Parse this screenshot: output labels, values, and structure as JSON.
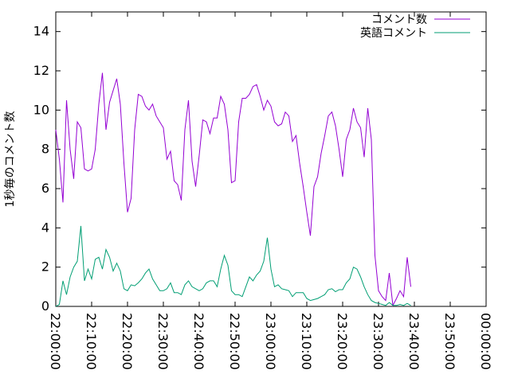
{
  "chart_data": {
    "type": "line",
    "xlabel": "",
    "ylabel": "1秒毎のコメント数",
    "ylim": [
      0,
      15
    ],
    "yticks": [
      0,
      2,
      4,
      6,
      8,
      10,
      12,
      14
    ],
    "xlim": [
      "22:00:00",
      "00:00:00"
    ],
    "xticks": [
      "22:00:00",
      "22:10:00",
      "22:20:00",
      "22:30:00",
      "22:40:00",
      "22:50:00",
      "23:00:00",
      "23:10:00",
      "23:20:00",
      "23:30:00",
      "23:40:00",
      "23:50:00",
      "00:00:00"
    ],
    "grid": false,
    "legend_position": "top-right",
    "series": [
      {
        "name": "コメント数",
        "color": "#9400d3",
        "points": [
          [
            "22:00:00",
            9.0
          ],
          [
            "22:01:00",
            7.5
          ],
          [
            "22:02:00",
            5.3
          ],
          [
            "22:03:00",
            10.5
          ],
          [
            "22:04:00",
            8.0
          ],
          [
            "22:05:00",
            6.5
          ],
          [
            "22:06:00",
            9.4
          ],
          [
            "22:07:00",
            9.1
          ],
          [
            "22:08:00",
            7.0
          ],
          [
            "22:09:00",
            6.9
          ],
          [
            "22:10:00",
            7.0
          ],
          [
            "22:11:00",
            8.0
          ],
          [
            "22:12:00",
            10.3
          ],
          [
            "22:13:00",
            11.9
          ],
          [
            "22:14:00",
            9.0
          ],
          [
            "22:15:00",
            10.4
          ],
          [
            "22:16:00",
            11.0
          ],
          [
            "22:17:00",
            11.6
          ],
          [
            "22:18:00",
            10.3
          ],
          [
            "22:19:00",
            7.3
          ],
          [
            "22:20:00",
            4.8
          ],
          [
            "22:21:00",
            5.5
          ],
          [
            "22:22:00",
            9.0
          ],
          [
            "22:23:00",
            10.8
          ],
          [
            "22:24:00",
            10.7
          ],
          [
            "22:25:00",
            10.2
          ],
          [
            "22:26:00",
            10.0
          ],
          [
            "22:27:00",
            10.3
          ],
          [
            "22:28:00",
            9.7
          ],
          [
            "22:29:00",
            9.4
          ],
          [
            "22:30:00",
            9.1
          ],
          [
            "22:31:00",
            7.5
          ],
          [
            "22:32:00",
            7.9
          ],
          [
            "22:33:00",
            6.4
          ],
          [
            "22:34:00",
            6.2
          ],
          [
            "22:35:00",
            5.4
          ],
          [
            "22:36:00",
            9.0
          ],
          [
            "22:37:00",
            10.5
          ],
          [
            "22:38:00",
            7.4
          ],
          [
            "22:39:00",
            6.1
          ],
          [
            "22:40:00",
            7.7
          ],
          [
            "22:41:00",
            9.5
          ],
          [
            "22:42:00",
            9.4
          ],
          [
            "22:43:00",
            8.8
          ],
          [
            "22:44:00",
            9.6
          ],
          [
            "22:45:00",
            9.6
          ],
          [
            "22:46:00",
            10.7
          ],
          [
            "22:47:00",
            10.3
          ],
          [
            "22:48:00",
            9.0
          ],
          [
            "22:49:00",
            6.3
          ],
          [
            "22:50:00",
            6.4
          ],
          [
            "22:51:00",
            9.4
          ],
          [
            "22:52:00",
            10.6
          ],
          [
            "22:53:00",
            10.6
          ],
          [
            "22:54:00",
            10.8
          ],
          [
            "22:55:00",
            11.2
          ],
          [
            "22:56:00",
            11.3
          ],
          [
            "22:57:00",
            10.7
          ],
          [
            "22:58:00",
            10.0
          ],
          [
            "22:59:00",
            10.5
          ],
          [
            "23:00:00",
            10.2
          ],
          [
            "23:01:00",
            9.4
          ],
          [
            "23:02:00",
            9.2
          ],
          [
            "23:03:00",
            9.3
          ],
          [
            "23:04:00",
            9.9
          ],
          [
            "23:05:00",
            9.7
          ],
          [
            "23:06:00",
            8.4
          ],
          [
            "23:07:00",
            8.7
          ],
          [
            "23:08:00",
            7.3
          ],
          [
            "23:09:00",
            6.1
          ],
          [
            "23:10:00",
            4.8
          ],
          [
            "23:11:00",
            3.6
          ],
          [
            "23:12:00",
            6.1
          ],
          [
            "23:13:00",
            6.6
          ],
          [
            "23:14:00",
            7.8
          ],
          [
            "23:15:00",
            8.7
          ],
          [
            "23:16:00",
            9.7
          ],
          [
            "23:17:00",
            9.9
          ],
          [
            "23:18:00",
            9.2
          ],
          [
            "23:19:00",
            8.0
          ],
          [
            "23:20:00",
            6.6
          ],
          [
            "23:21:00",
            8.5
          ],
          [
            "23:22:00",
            9.0
          ],
          [
            "23:23:00",
            10.1
          ],
          [
            "23:24:00",
            9.4
          ],
          [
            "23:25:00",
            9.1
          ],
          [
            "23:26:00",
            7.6
          ],
          [
            "23:27:00",
            10.1
          ],
          [
            "23:28:00",
            8.5
          ],
          [
            "23:29:00",
            2.6
          ],
          [
            "23:30:00",
            0.8
          ],
          [
            "23:31:00",
            0.5
          ],
          [
            "23:32:00",
            0.3
          ],
          [
            "23:33:00",
            1.7
          ],
          [
            "23:34:00",
            0.05
          ],
          [
            "23:35:00",
            0.4
          ],
          [
            "23:36:00",
            0.8
          ],
          [
            "23:37:00",
            0.5
          ],
          [
            "23:38:00",
            2.5
          ],
          [
            "23:39:00",
            1.0
          ]
        ]
      },
      {
        "name": "英語コメント",
        "color": "#009e73",
        "points": [
          [
            "22:00:00",
            0.0
          ],
          [
            "22:01:00",
            0.1
          ],
          [
            "22:02:00",
            1.3
          ],
          [
            "22:03:00",
            0.6
          ],
          [
            "22:04:00",
            1.5
          ],
          [
            "22:05:00",
            2.0
          ],
          [
            "22:06:00",
            2.3
          ],
          [
            "22:07:00",
            4.1
          ],
          [
            "22:08:00",
            1.3
          ],
          [
            "22:09:00",
            1.9
          ],
          [
            "22:10:00",
            1.4
          ],
          [
            "22:11:00",
            2.4
          ],
          [
            "22:12:00",
            2.5
          ],
          [
            "22:13:00",
            1.9
          ],
          [
            "22:14:00",
            2.9
          ],
          [
            "22:15:00",
            2.5
          ],
          [
            "22:16:00",
            1.8
          ],
          [
            "22:17:00",
            2.2
          ],
          [
            "22:18:00",
            1.8
          ],
          [
            "22:19:00",
            0.9
          ],
          [
            "22:20:00",
            0.8
          ],
          [
            "22:21:00",
            1.1
          ],
          [
            "22:22:00",
            1.05
          ],
          [
            "22:23:00",
            1.2
          ],
          [
            "22:24:00",
            1.4
          ],
          [
            "22:25:00",
            1.7
          ],
          [
            "22:26:00",
            1.9
          ],
          [
            "22:27:00",
            1.4
          ],
          [
            "22:28:00",
            1.1
          ],
          [
            "22:29:00",
            0.8
          ],
          [
            "22:30:00",
            0.8
          ],
          [
            "22:31:00",
            0.9
          ],
          [
            "22:32:00",
            1.2
          ],
          [
            "22:33:00",
            0.7
          ],
          [
            "22:34:00",
            0.7
          ],
          [
            "22:35:00",
            0.6
          ],
          [
            "22:36:00",
            1.1
          ],
          [
            "22:37:00",
            1.3
          ],
          [
            "22:38:00",
            1.0
          ],
          [
            "22:39:00",
            0.9
          ],
          [
            "22:40:00",
            0.8
          ],
          [
            "22:41:00",
            0.9
          ],
          [
            "22:42:00",
            1.2
          ],
          [
            "22:43:00",
            1.3
          ],
          [
            "22:44:00",
            1.3
          ],
          [
            "22:45:00",
            1.0
          ],
          [
            "22:46:00",
            1.9
          ],
          [
            "22:47:00",
            2.6
          ],
          [
            "22:48:00",
            2.1
          ],
          [
            "22:49:00",
            0.8
          ],
          [
            "22:50:00",
            0.6
          ],
          [
            "22:51:00",
            0.6
          ],
          [
            "22:52:00",
            0.5
          ],
          [
            "22:53:00",
            1.0
          ],
          [
            "22:54:00",
            1.5
          ],
          [
            "22:55:00",
            1.3
          ],
          [
            "22:56:00",
            1.6
          ],
          [
            "22:57:00",
            1.8
          ],
          [
            "22:58:00",
            2.3
          ],
          [
            "22:59:00",
            3.5
          ],
          [
            "23:00:00",
            1.9
          ],
          [
            "23:01:00",
            1.0
          ],
          [
            "23:02:00",
            1.1
          ],
          [
            "23:03:00",
            0.9
          ],
          [
            "23:04:00",
            0.85
          ],
          [
            "23:05:00",
            0.8
          ],
          [
            "23:06:00",
            0.5
          ],
          [
            "23:07:00",
            0.7
          ],
          [
            "23:08:00",
            0.7
          ],
          [
            "23:09:00",
            0.7
          ],
          [
            "23:10:00",
            0.4
          ],
          [
            "23:11:00",
            0.3
          ],
          [
            "23:12:00",
            0.35
          ],
          [
            "23:13:00",
            0.4
          ],
          [
            "23:14:00",
            0.5
          ],
          [
            "23:15:00",
            0.6
          ],
          [
            "23:16:00",
            0.85
          ],
          [
            "23:17:00",
            0.9
          ],
          [
            "23:18:00",
            0.75
          ],
          [
            "23:19:00",
            0.85
          ],
          [
            "23:20:00",
            0.85
          ],
          [
            "23:21:00",
            1.2
          ],
          [
            "23:22:00",
            1.4
          ],
          [
            "23:23:00",
            2.0
          ],
          [
            "23:24:00",
            1.9
          ],
          [
            "23:25:00",
            1.5
          ],
          [
            "23:26:00",
            1.0
          ],
          [
            "23:27:00",
            0.6
          ],
          [
            "23:28:00",
            0.3
          ],
          [
            "23:29:00",
            0.2
          ],
          [
            "23:30:00",
            0.15
          ],
          [
            "23:31:00",
            0.1
          ],
          [
            "23:32:00",
            0.05
          ],
          [
            "23:33:00",
            0.2
          ],
          [
            "23:34:00",
            0.05
          ],
          [
            "23:35:00",
            0.05
          ],
          [
            "23:36:00",
            0.1
          ],
          [
            "23:37:00",
            0.05
          ],
          [
            "23:38:00",
            0.15
          ],
          [
            "23:39:00",
            0.05
          ]
        ]
      }
    ]
  }
}
